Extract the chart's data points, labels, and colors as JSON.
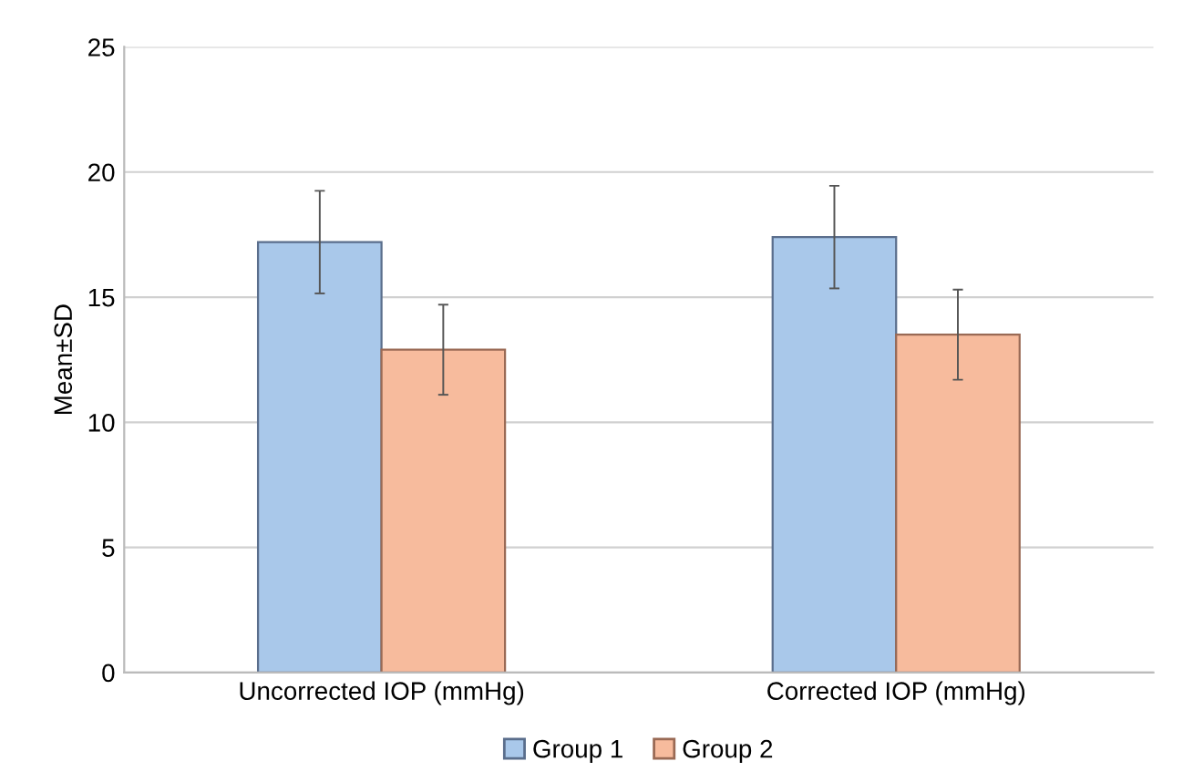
{
  "chart_data": {
    "type": "bar",
    "ylabel": "Mean±SD",
    "categories": [
      "Uncorrected IOP (mmHg)",
      "Corrected IOP (mmHg)"
    ],
    "series": [
      {
        "name": "Group 1",
        "color": "#a9c8ea",
        "values": [
          17.2,
          17.4
        ],
        "errors": [
          2.05,
          2.05
        ]
      },
      {
        "name": "Group 2",
        "color": "#f7bb9d",
        "values": [
          12.9,
          13.5
        ],
        "errors": [
          1.8,
          1.8
        ]
      }
    ],
    "ylim": [
      0,
      25
    ],
    "yticks": [
      0,
      5,
      10,
      15,
      20,
      25
    ],
    "grid": "y",
    "legend": "bottom"
  }
}
